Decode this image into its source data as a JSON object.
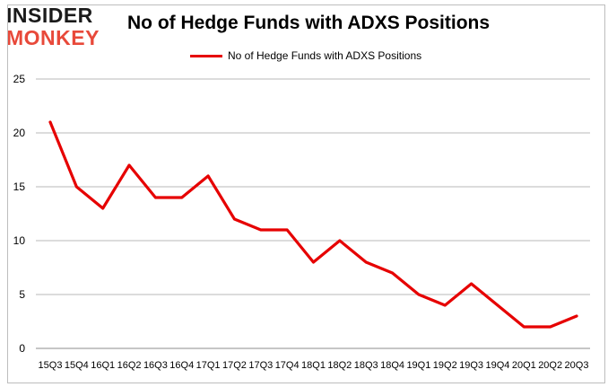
{
  "logo": {
    "line1": "INSIDER",
    "line2": "MONKEY",
    "dark_color": "#1a1a1a",
    "accent_color": "#e8493a"
  },
  "chart_data": {
    "type": "line",
    "title": "No of Hedge Funds with ADXS Positions",
    "xlabel": "",
    "ylabel": "",
    "categories": [
      "15Q3",
      "15Q4",
      "16Q1",
      "16Q2",
      "16Q3",
      "16Q4",
      "17Q1",
      "17Q2",
      "17Q3",
      "17Q4",
      "18Q1",
      "18Q2",
      "18Q3",
      "18Q4",
      "19Q1",
      "19Q2",
      "19Q3",
      "19Q4",
      "20Q1",
      "20Q2",
      "20Q3"
    ],
    "series": [
      {
        "name": "No of Hedge Funds with ADXS Positions",
        "color": "#e60000",
        "values": [
          21,
          15,
          13,
          17,
          14,
          14,
          16,
          12,
          11,
          11,
          8,
          10,
          8,
          7,
          5,
          4,
          6,
          4,
          2,
          2,
          3
        ]
      }
    ],
    "ylim": [
      0,
      25
    ],
    "yticks": [
      0,
      5,
      10,
      15,
      20,
      25
    ],
    "grid": true,
    "legend_position": "top-center"
  }
}
